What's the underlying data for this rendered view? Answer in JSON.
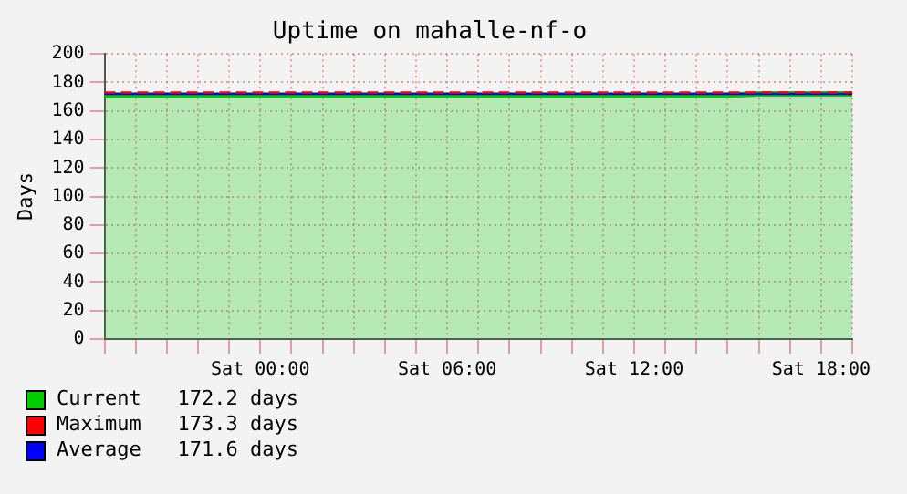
{
  "chart_data": {
    "type": "area",
    "title": "Uptime on mahalle-nf-o",
    "ylabel": "Days",
    "categories": [
      null,
      null,
      null,
      null,
      null,
      "Sat 00:00",
      null,
      null,
      null,
      null,
      null,
      "Sat 06:00",
      null,
      null,
      null,
      null,
      null,
      "Sat 12:00",
      null,
      null,
      null,
      null,
      null,
      "Sat 18:00",
      null
    ],
    "ylim": [
      0,
      200
    ],
    "yticks": [
      0,
      20,
      40,
      60,
      80,
      100,
      120,
      140,
      160,
      180,
      200
    ],
    "series": [
      {
        "name": "Current   172.2 days",
        "color": "#00cc00",
        "values": [
          171,
          171,
          171,
          171,
          171,
          171,
          171,
          171,
          171,
          171,
          171,
          171,
          171,
          171,
          171,
          171,
          171,
          171,
          171,
          171,
          171,
          172,
          172,
          172,
          172
        ]
      },
      {
        "name": "Maximum   173.3 days",
        "type": "line",
        "color": "#ff0000",
        "line_style": "dashed",
        "values": [
          173,
          173,
          173,
          173,
          173,
          173,
          173,
          173,
          173,
          173,
          173,
          173,
          173,
          173,
          173,
          173,
          173,
          173,
          173,
          173,
          173,
          173,
          173,
          173,
          173
        ]
      },
      {
        "name": "Average   171.6 days",
        "type": "line",
        "color": "#0000ff",
        "line_style": "solid",
        "values": [
          172,
          172,
          172,
          172,
          172,
          172,
          172,
          172,
          172,
          172,
          172,
          172,
          172,
          172,
          172,
          172,
          172,
          172,
          172,
          172,
          172,
          172,
          172,
          172,
          172
        ]
      }
    ],
    "grid": true,
    "legend": "bottom",
    "marker": "none"
  }
}
